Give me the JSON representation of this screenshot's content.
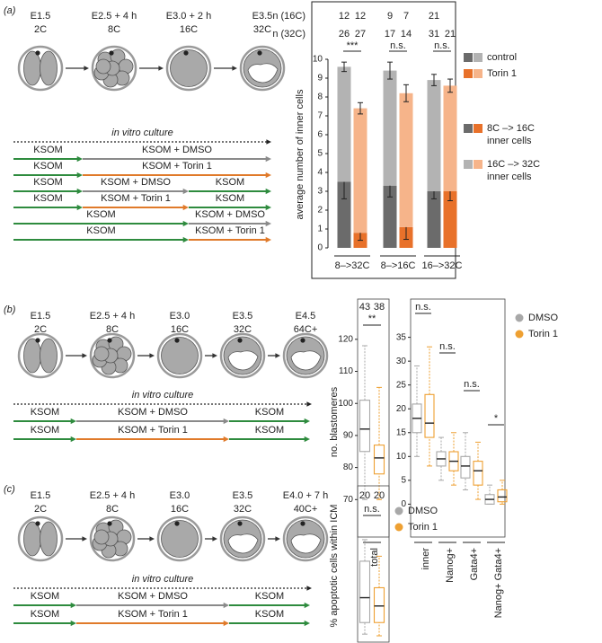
{
  "panels": [
    {
      "label": "(a)",
      "stages": [
        {
          "day": "E1.5",
          "cell": "2C"
        },
        {
          "day": "E2.5 + 4 h",
          "cell": "8C"
        },
        {
          "day": "E3.0 + 2 h",
          "cell": "16C"
        },
        {
          "day": "E3.5",
          "cell": "32C"
        }
      ],
      "culture": "in vitro culture",
      "protocols": [
        [
          {
            "text": "KSOM",
            "color": "#2e8b3e"
          },
          {
            "text": "KSOM + DMSO",
            "color": "#8a8a8a"
          }
        ],
        [
          {
            "text": "KSOM",
            "color": "#2e8b3e"
          },
          {
            "text": "KSOM + Torin 1",
            "color": "#e07a2a"
          }
        ],
        [
          {
            "text": "KSOM",
            "color": "#2e8b3e"
          },
          {
            "text": "KSOM + DMSO",
            "color": "#8a8a8a"
          },
          {
            "text": "KSOM",
            "color": "#2e8b3e"
          }
        ],
        [
          {
            "text": "KSOM",
            "color": "#2e8b3e"
          },
          {
            "text": "KSOM + Torin 1",
            "color": "#e07a2a"
          },
          {
            "text": "KSOM",
            "color": "#2e8b3e"
          }
        ],
        [
          {
            "text": "KSOM",
            "color": "#2e8b3e"
          },
          {
            "text": "KSOM + DMSO",
            "color": "#8a8a8a"
          }
        ],
        [
          {
            "text": "KSOM",
            "color": "#2e8b3e"
          },
          {
            "text": "KSOM + Torin 1",
            "color": "#e07a2a"
          }
        ]
      ]
    },
    {
      "label": "(b)",
      "stages": [
        {
          "day": "E1.5",
          "cell": "2C"
        },
        {
          "day": "E2.5 + 4 h",
          "cell": "8C"
        },
        {
          "day": "E3.0",
          "cell": "16C"
        },
        {
          "day": "E3.5",
          "cell": "32C"
        },
        {
          "day": "E4.5",
          "cell": "64C+"
        }
      ],
      "culture": "in vitro culture",
      "protocols": [
        [
          {
            "text": "KSOM",
            "color": "#2e8b3e"
          },
          {
            "text": "KSOM + DMSO",
            "color": "#8a8a8a"
          },
          {
            "text": "KSOM",
            "color": "#2e8b3e"
          }
        ],
        [
          {
            "text": "KSOM",
            "color": "#2e8b3e"
          },
          {
            "text": "KSOM + Torin 1",
            "color": "#e07a2a"
          },
          {
            "text": "KSOM",
            "color": "#2e8b3e"
          }
        ]
      ]
    },
    {
      "label": "(c)",
      "stages": [
        {
          "day": "E1.5",
          "cell": "2C"
        },
        {
          "day": "E2.5 + 4 h",
          "cell": "8C"
        },
        {
          "day": "E3.0",
          "cell": "16C"
        },
        {
          "day": "E3.5",
          "cell": "32C"
        },
        {
          "day": "E4.0 + 7 h",
          "cell": "40C+"
        }
      ],
      "culture": "in vitro culture",
      "protocols": [
        [
          {
            "text": "KSOM",
            "color": "#2e8b3e"
          },
          {
            "text": "KSOM + DMSO",
            "color": "#8a8a8a"
          },
          {
            "text": "KSOM",
            "color": "#2e8b3e"
          }
        ],
        [
          {
            "text": "KSOM",
            "color": "#2e8b3e"
          },
          {
            "text": "KSOM + Torin 1",
            "color": "#e07a2a"
          },
          {
            "text": "KSOM",
            "color": "#2e8b3e"
          }
        ]
      ]
    }
  ],
  "chart_data": [
    {
      "type": "stacked-bar",
      "y_label": "average number of inner cells",
      "categories": [
        "8–>32C",
        "8–>16C",
        "16–>32C"
      ],
      "stack_names": [
        [
          "8C –> 16C",
          "inner cells"
        ],
        [
          "16C –> 32C",
          "inner cells"
        ]
      ],
      "series": [
        {
          "name": "control",
          "colors": [
            "#6b6b6b",
            "#b3b3b3"
          ],
          "values": [
            [
              3.5,
              6.1
            ],
            [
              3.3,
              6.1
            ],
            [
              3.0,
              5.9
            ]
          ],
          "errors": [
            [
              0.9,
              0.25
            ],
            [
              0.6,
              0.45
            ],
            [
              0.4,
              0.3
            ]
          ]
        },
        {
          "name": "Torin 1",
          "colors": [
            "#e8712a",
            "#f6b48a"
          ],
          "values": [
            [
              0.8,
              6.6
            ],
            [
              1.1,
              7.1
            ],
            [
              3.0,
              5.6
            ]
          ],
          "errors": [
            [
              0.4,
              0.3
            ],
            [
              0.65,
              0.45
            ],
            [
              0.5,
              0.35
            ]
          ]
        }
      ],
      "n_rows": [
        {
          "label": "n (16C)",
          "values": [
            12,
            12,
            9,
            7,
            21
          ]
        },
        {
          "label": "n (32C)",
          "values": [
            26,
            27,
            17,
            14,
            31,
            21
          ]
        }
      ],
      "significance": [
        "***",
        "n.s.",
        "n.s."
      ],
      "ylim": [
        0,
        10
      ],
      "yticks": [
        0,
        1,
        2,
        3,
        4,
        5,
        6,
        7,
        8,
        9,
        10
      ]
    },
    {
      "type": "box",
      "y_label": "no. blastomeres",
      "categories": [
        "total"
      ],
      "series": [
        {
          "name": "DMSO",
          "color": "#a8a8a8",
          "n": 43,
          "boxes": [
            {
              "min": 70,
              "q1": 85,
              "median": 92,
              "q3": 101,
              "max": 118
            }
          ]
        },
        {
          "name": "Torin 1",
          "color": "#eea032",
          "n": 38,
          "boxes": [
            {
              "min": 70,
              "q1": 78,
              "median": 83,
              "q3": 87,
              "max": 105
            }
          ]
        }
      ],
      "significance": [
        "**"
      ],
      "ylim": [
        67,
        125
      ],
      "yticks": [
        70,
        80,
        90,
        100,
        110,
        120
      ]
    },
    {
      "type": "box",
      "categories": [
        "inner",
        "Nanog+",
        "Gata4+",
        "Nanog+ Gata4+"
      ],
      "series": [
        {
          "name": "DMSO",
          "color": "#a8a8a8",
          "boxes": [
            {
              "min": 10,
              "q1": 15,
              "median": 18,
              "q3": 21,
              "max": 29
            },
            {
              "min": 5,
              "q1": 8,
              "median": 9.5,
              "q3": 11,
              "max": 14
            },
            {
              "min": 3,
              "q1": 5.5,
              "median": 8,
              "q3": 10,
              "max": 15
            },
            {
              "min": 0,
              "q1": 0,
              "median": 1,
              "q3": 2,
              "max": 4
            }
          ]
        },
        {
          "name": "Torin 1",
          "color": "#eea032",
          "boxes": [
            {
              "min": 8,
              "q1": 14,
              "median": 17,
              "q3": 23,
              "max": 33
            },
            {
              "min": 4,
              "q1": 7,
              "median": 9,
              "q3": 11,
              "max": 15
            },
            {
              "min": 1,
              "q1": 4,
              "median": 7,
              "q3": 9,
              "max": 13
            },
            {
              "min": 0,
              "q1": 0.5,
              "median": 1.5,
              "q3": 3,
              "max": 5
            }
          ]
        }
      ],
      "significance": [
        "n.s.",
        "n.s.",
        "n.s.",
        "*"
      ],
      "ylim": [
        -2,
        37
      ],
      "yticks": [
        0,
        5,
        10,
        15,
        20,
        25,
        30,
        35
      ]
    },
    {
      "type": "box",
      "y_label": "% apoptotic cells within ICM",
      "categories": [
        null
      ],
      "series": [
        {
          "name": "DMSO",
          "color": "#a8a8a8",
          "n": 20,
          "boxes": [
            {
              "min": 1,
              "q1": 8,
              "median": 23,
              "q3": 45,
              "max": 58
            }
          ]
        },
        {
          "name": "Torin 1",
          "color": "#eea032",
          "n": 20,
          "boxes": [
            {
              "min": 0,
              "q1": 8,
              "median": 18,
              "q3": 29,
              "max": 48
            }
          ]
        }
      ],
      "significance": [
        "n.s."
      ],
      "ylim": [
        0,
        65
      ]
    }
  ]
}
